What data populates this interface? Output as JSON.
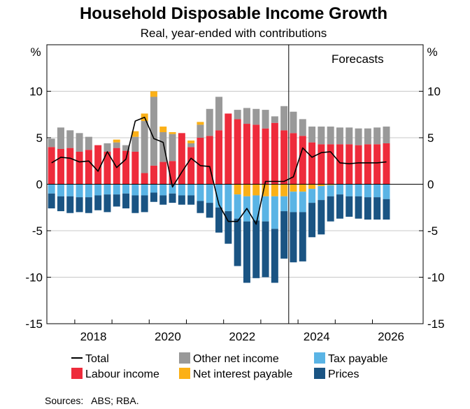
{
  "chart_data": {
    "type": "bar",
    "title": "Household Disposable Income Growth",
    "subtitle": "Real, year-ended with contributions",
    "y_unit_label": "%",
    "ylim": [
      -15,
      15
    ],
    "y_ticks": [
      -15,
      -10,
      -5,
      0,
      5,
      10
    ],
    "x_tick_labels": [
      "2018",
      "2020",
      "2022",
      "2024",
      "2026"
    ],
    "forecast_label": "Forecasts",
    "source": "Sources:   ABS; RBA.",
    "stacking": "positive components stacked upward from zero, negative components stacked downward",
    "x": [
      "2017Q2",
      "2017Q3",
      "2017Q4",
      "2018Q1",
      "2018Q2",
      "2018Q3",
      "2018Q4",
      "2019Q1",
      "2019Q2",
      "2019Q3",
      "2019Q4",
      "2020Q1",
      "2020Q2",
      "2020Q3",
      "2020Q4",
      "2021Q1",
      "2021Q2",
      "2021Q3",
      "2021Q4",
      "2022Q1",
      "2022Q2",
      "2022Q3",
      "2022Q4",
      "2023Q1",
      "2023Q2",
      "2023Q3",
      "2023Q4",
      "2024Q1",
      "2024Q2",
      "2024Q3",
      "2024Q4",
      "2025Q1",
      "2025Q2",
      "2025Q3",
      "2025Q4",
      "2026Q1",
      "2026Q2"
    ],
    "forecast_start": "2023Q4",
    "series": [
      {
        "name": "Labour income",
        "color": "#ee2b3b",
        "values": [
          4.0,
          3.8,
          3.9,
          3.5,
          3.7,
          4.2,
          3.5,
          3.9,
          3.6,
          3.5,
          1.2,
          2.0,
          2.4,
          2.5,
          5.5,
          4.0,
          5.0,
          5.2,
          5.8,
          7.6,
          7.0,
          6.5,
          6.4,
          6.0,
          6.6,
          5.8,
          5.5,
          5.2,
          4.5,
          4.3,
          4.3,
          4.3,
          4.3,
          4.2,
          4.3,
          4.3,
          4.4
        ]
      },
      {
        "name": "Other net income",
        "color": "#999999",
        "values": [
          0.9,
          2.3,
          1.9,
          2.0,
          1.4,
          0,
          0.9,
          0.6,
          0.6,
          1.6,
          5.6,
          7.4,
          3.2,
          2.9,
          0,
          0.4,
          1.4,
          2.9,
          3.6,
          0,
          1.0,
          1.7,
          1.7,
          2.0,
          0.7,
          2.6,
          2.3,
          1.8,
          1.7,
          1.9,
          1.9,
          1.8,
          1.8,
          1.8,
          1.7,
          1.8,
          1.8
        ]
      },
      {
        "name": "Net interest payable",
        "color": "#fbb017",
        "values": [
          0,
          0,
          0,
          0,
          0,
          0,
          0,
          0.3,
          0,
          0.6,
          0.8,
          0.6,
          0.6,
          0.2,
          0,
          0.3,
          0.3,
          0,
          0,
          0,
          -1.1,
          -1.3,
          -1.2,
          -1.3,
          -1.3,
          -1.3,
          -0.8,
          -0.8,
          -0.5,
          -0.2,
          -0.1,
          0,
          0,
          0,
          0,
          0,
          0
        ]
      },
      {
        "name": "Tax payable",
        "color": "#5ab4e5",
        "values": [
          -1.0,
          -1.3,
          -1.3,
          -1.4,
          -1.4,
          -1.2,
          -1.1,
          -1.1,
          -1.0,
          -1.2,
          -1.2,
          -0.9,
          -1.2,
          -1.0,
          -1.2,
          -1.2,
          -1.8,
          -2.0,
          -2.5,
          -2.9,
          -2.6,
          -2.7,
          -2.7,
          -2.7,
          -3.5,
          -1.6,
          -2.2,
          -2.2,
          -1.5,
          -1.5,
          -1.2,
          -1.1,
          -1.3,
          -1.3,
          -1.4,
          -1.4,
          -1.6
        ]
      },
      {
        "name": "Prices",
        "color": "#1a5483",
        "values": [
          -1.6,
          -1.6,
          -1.8,
          -1.6,
          -1.7,
          -1.6,
          -1.9,
          -1.3,
          -1.6,
          -1.9,
          -1.8,
          -1.0,
          -1.0,
          -1.0,
          -1.0,
          -1.0,
          -1.3,
          -1.6,
          -2.7,
          -3.5,
          -5.1,
          -6.6,
          -6.2,
          -6.0,
          -5.8,
          -5.1,
          -5.4,
          -5.3,
          -3.7,
          -3.7,
          -2.7,
          -2.6,
          -2.2,
          -2.4,
          -2.4,
          -2.4,
          -2.2
        ]
      },
      {
        "name": "Total",
        "color": "#000000",
        "kind": "line",
        "values": [
          2.3,
          2.9,
          2.8,
          2.4,
          2.5,
          1.4,
          3.5,
          1.8,
          2.7,
          6.8,
          7.2,
          4.9,
          4.5,
          -0.3,
          1.3,
          2.8,
          2.0,
          1.9,
          -2.2,
          -4.0,
          -4.0,
          -2.6,
          -4.3,
          0.3,
          0.3,
          0.3,
          0.8,
          3.9,
          2.9,
          3.4,
          3.5,
          2.3,
          2.2,
          2.3,
          2.3,
          2.3,
          2.4
        ]
      }
    ],
    "legend": [
      {
        "name": "Total",
        "kind": "line",
        "color": "#000000"
      },
      {
        "name": "Other net income",
        "kind": "box",
        "color": "#999999"
      },
      {
        "name": "Tax payable",
        "kind": "box",
        "color": "#5ab4e5"
      },
      {
        "name": "Labour income",
        "kind": "box",
        "color": "#ee2b3b"
      },
      {
        "name": "Net interest payable",
        "kind": "box",
        "color": "#fbb017"
      },
      {
        "name": "Prices",
        "kind": "box",
        "color": "#1a5483"
      }
    ],
    "grid": true,
    "legend_placement": "bottom"
  }
}
